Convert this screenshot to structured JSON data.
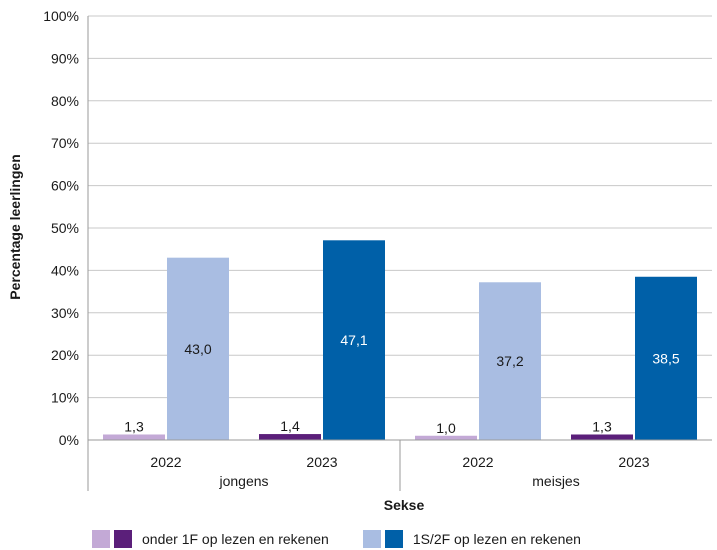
{
  "chart_data": {
    "type": "bar",
    "ylabel": "Percentage leerlingen",
    "xlabel": "Sekse",
    "ylim": [
      0,
      100
    ],
    "y_ticks": [
      "0%",
      "10%",
      "20%",
      "30%",
      "40%",
      "50%",
      "60%",
      "70%",
      "80%",
      "90%",
      "100%"
    ],
    "groups": [
      {
        "label": "jongens",
        "years": [
          {
            "year": "2022",
            "below": 1.3,
            "below_label": "1,3",
            "above": 43.0,
            "above_label": "43,0"
          },
          {
            "year": "2023",
            "below": 1.4,
            "below_label": "1,4",
            "above": 47.1,
            "above_label": "47,1"
          }
        ]
      },
      {
        "label": "meisjes",
        "years": [
          {
            "year": "2022",
            "below": 1.0,
            "below_label": "1,0",
            "above": 37.2,
            "above_label": "37,2"
          },
          {
            "year": "2023",
            "below": 1.3,
            "below_label": "1,3",
            "above": 38.5,
            "above_label": "38,5"
          }
        ]
      }
    ],
    "colors": {
      "below_2022": "#c3a9d6",
      "below_2023": "#5b1f7a",
      "above_2022": "#a9bde2",
      "above_2023": "#0060a8"
    },
    "legend": [
      {
        "label": "onder 1F op lezen en rekenen",
        "colors": [
          "#c3a9d6",
          "#5b1f7a"
        ]
      },
      {
        "label": "1S/2F op lezen en rekenen",
        "colors": [
          "#a9bde2",
          "#0060a8"
        ]
      }
    ],
    "grid": true
  }
}
